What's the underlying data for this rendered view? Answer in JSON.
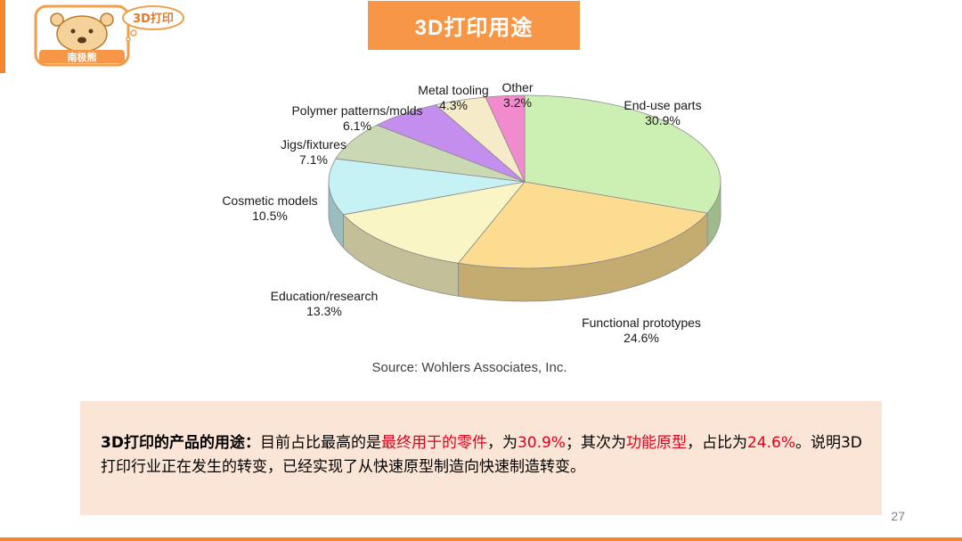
{
  "logo": {
    "name": "南极熊",
    "badge": "3D打印"
  },
  "title": "3D打印用途",
  "chart_data": {
    "type": "pie",
    "slices": [
      {
        "label": "End-use parts",
        "value": 30.9,
        "display": "30.9%",
        "color": "#ccf0b4"
      },
      {
        "label": "Functional prototypes",
        "value": 24.6,
        "display": "24.6%",
        "color": "#fbdc90"
      },
      {
        "label": "Education/research",
        "value": 13.3,
        "display": "13.3%",
        "color": "#faf5c4"
      },
      {
        "label": "Cosmetic models",
        "value": 10.5,
        "display": "10.5%",
        "color": "#c6f2f5"
      },
      {
        "label": "Jigs/fixtures",
        "value": 7.1,
        "display": "7.1%",
        "color": "#cad8b4"
      },
      {
        "label": "Polymer patterns/molds",
        "value": 6.1,
        "display": "6.1%",
        "color": "#c48eee"
      },
      {
        "label": "Metal tooling",
        "value": 4.3,
        "display": "4.3%",
        "color": "#f6ebc8"
      },
      {
        "label": "Other",
        "value": 3.2,
        "display": "3.2%",
        "color": "#f28bce"
      }
    ],
    "source": "Source: Wohlers Associates, Inc."
  },
  "summary": {
    "lead": "3D打印的产品的用途：",
    "t1": "目前占比最高的是",
    "h1": "最终用于的零件",
    "t2": "，为",
    "h2": "30.9%",
    "t3": "；其次为",
    "h3": "功能原型",
    "t4": "，占比为",
    "h4": "24.6%",
    "t5": "。说明3D打印行业正在发生的转变，已经实现了从快速原型制造向快速制造转变。"
  },
  "page_number": "27"
}
